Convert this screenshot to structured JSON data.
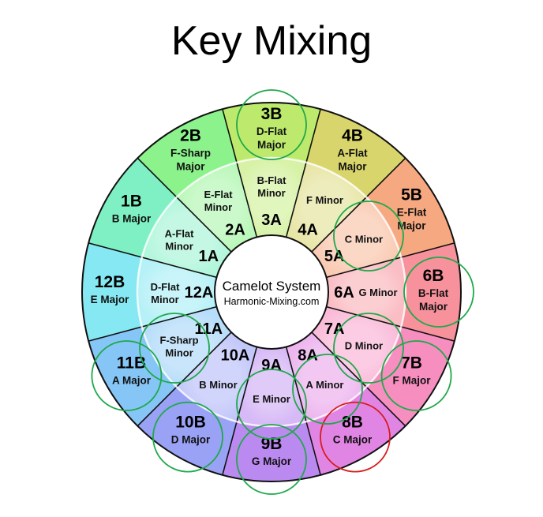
{
  "title": "Key Mixing",
  "center": {
    "line1": "Camelot System",
    "line2": "Harmonic-Mixing.com"
  },
  "colors": {
    "highlight_ring": "#1fa84a",
    "current_ring": "#d61d1d",
    "hub_fill": "#ffffff",
    "divider": "#111111"
  },
  "wheel": [
    {
      "n": 12,
      "outer": {
        "code": "12B",
        "name": "E Major"
      },
      "inner": {
        "code": "12A",
        "name": "D-Flat Minor"
      },
      "color": "#86e8f2"
    },
    {
      "n": 1,
      "outer": {
        "code": "1B",
        "name": "B Major"
      },
      "inner": {
        "code": "1A",
        "name": "A-Flat Minor"
      },
      "color": "#7ef0c4"
    },
    {
      "n": 2,
      "outer": {
        "code": "2B",
        "name": "F-Sharp Major"
      },
      "inner": {
        "code": "2A",
        "name": "E-Flat Minor"
      },
      "color": "#8cf28c"
    },
    {
      "n": 3,
      "outer": {
        "code": "3B",
        "name": "D-Flat Major"
      },
      "inner": {
        "code": "3A",
        "name": "B-Flat Minor"
      },
      "color": "#bdea6c"
    },
    {
      "n": 4,
      "outer": {
        "code": "4B",
        "name": "A-Flat Major"
      },
      "inner": {
        "code": "4A",
        "name": "F Minor"
      },
      "color": "#d8d56c"
    },
    {
      "n": 5,
      "outer": {
        "code": "5B",
        "name": "E-Flat Major"
      },
      "inner": {
        "code": "5A",
        "name": "C Minor"
      },
      "color": "#f6a880"
    },
    {
      "n": 6,
      "outer": {
        "code": "6B",
        "name": "B-Flat Major"
      },
      "inner": {
        "code": "6A",
        "name": "G Minor"
      },
      "color": "#f7919c"
    },
    {
      "n": 7,
      "outer": {
        "code": "7B",
        "name": "F Major"
      },
      "inner": {
        "code": "7A",
        "name": "D Minor"
      },
      "color": "#f68ec0"
    },
    {
      "n": 8,
      "outer": {
        "code": "8B",
        "name": "C Major"
      },
      "inner": {
        "code": "8A",
        "name": "A Minor"
      },
      "color": "#e185e4"
    },
    {
      "n": 9,
      "outer": {
        "code": "9B",
        "name": "G Major"
      },
      "inner": {
        "code": "9A",
        "name": "E Minor"
      },
      "color": "#bb8af0"
    },
    {
      "n": 10,
      "outer": {
        "code": "10B",
        "name": "D Major"
      },
      "inner": {
        "code": "10A",
        "name": "B Minor"
      },
      "color": "#9aa2f6"
    },
    {
      "n": 11,
      "outer": {
        "code": "11B",
        "name": "A Major"
      },
      "inner": {
        "code": "11A",
        "name": "F-Sharp Minor"
      },
      "color": "#86c6f6"
    }
  ],
  "highlighted_keys": [
    "11B",
    "10B",
    "9B",
    "F-Sharp Minor",
    "E Minor",
    "A Minor",
    "D Minor",
    "7B",
    "6B",
    "C Minor",
    "3B"
  ],
  "current_key": "8B"
}
